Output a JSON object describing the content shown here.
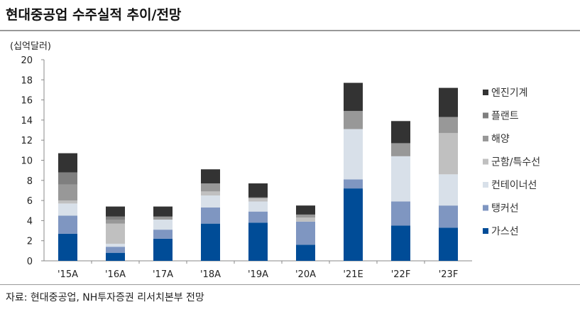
{
  "title": "현대중공업 수주실적 추이/전망",
  "source": "자료: 현대중공업, NH투자증권 리서치본부 전망",
  "chart_data": {
    "type": "bar",
    "stacked": true,
    "ylabel": "(십억달러)",
    "ylim": [
      0,
      20
    ],
    "yticks": [
      0,
      2,
      4,
      6,
      8,
      10,
      12,
      14,
      16,
      18,
      20
    ],
    "grid": false,
    "legend": "right",
    "categories": [
      "'15A",
      "'16A",
      "'17A",
      "'18A",
      "'19A",
      "'20A",
      "'21E",
      "'22F",
      "'23F"
    ],
    "series": [
      {
        "name": "가스선",
        "color": "#004c97",
        "values": [
          2.7,
          0.8,
          2.2,
          3.7,
          3.8,
          1.6,
          7.2,
          3.5,
          3.3
        ]
      },
      {
        "name": "탱커선",
        "color": "#7f96c1",
        "values": [
          1.8,
          0.6,
          0.9,
          1.6,
          1.1,
          2.3,
          0.9,
          2.4,
          2.2
        ]
      },
      {
        "name": "컨테이너선",
        "color": "#d8e0e9",
        "values": [
          1.2,
          0.3,
          1.0,
          1.2,
          1.0,
          0.0,
          5.0,
          4.5,
          3.1
        ]
      },
      {
        "name": "군함/특수선",
        "color": "#c0c0c0",
        "values": [
          0.3,
          2.0,
          0.0,
          0.4,
          0.3,
          0.4,
          0.0,
          0.0,
          4.1
        ]
      },
      {
        "name": "해양",
        "color": "#989898",
        "values": [
          1.6,
          0.4,
          0.3,
          0.8,
          0.1,
          0.3,
          1.8,
          1.3,
          1.6
        ]
      },
      {
        "name": "플랜트",
        "color": "#7f7f7f",
        "values": [
          1.2,
          0.3,
          0.0,
          0.0,
          0.0,
          0.0,
          0.0,
          0.0,
          0.0
        ]
      },
      {
        "name": "엔진기계",
        "color": "#333333",
        "values": [
          1.9,
          1.0,
          1.0,
          1.4,
          1.4,
          0.9,
          2.8,
          2.2,
          2.9
        ]
      }
    ]
  }
}
